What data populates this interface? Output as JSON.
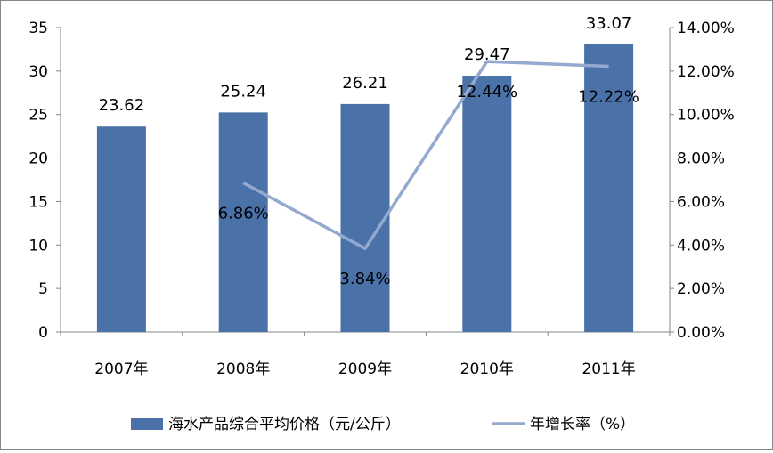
{
  "chart_data": {
    "type": "bar+line",
    "categories": [
      "2007年",
      "2008年",
      "2009年",
      "2010年",
      "2011年"
    ],
    "series": [
      {
        "name": "海水产品综合平均价格（元/公斤）",
        "type": "bar",
        "axis": "left",
        "values": [
          23.62,
          25.24,
          26.21,
          29.47,
          33.07
        ],
        "labels": [
          "23.62",
          "25.24",
          "26.21",
          "29.47",
          "33.07"
        ],
        "color": "#4a72a8"
      },
      {
        "name": "年增长率（%）",
        "type": "line",
        "axis": "right",
        "values": [
          null,
          6.86,
          3.84,
          12.44,
          12.22
        ],
        "labels": [
          "",
          "6.86%",
          "3.84%",
          "12.44%",
          "12.22%"
        ],
        "color": "#93a9cf"
      }
    ],
    "y_left": {
      "min": 0,
      "max": 35,
      "step": 5,
      "ticks": [
        "0",
        "5",
        "10",
        "15",
        "20",
        "25",
        "30",
        "35"
      ]
    },
    "y_right": {
      "min": 0,
      "max": 14,
      "step": 2,
      "ticks": [
        "0.00%",
        "2.00%",
        "4.00%",
        "6.00%",
        "8.00%",
        "10.00%",
        "12.00%",
        "14.00%"
      ]
    },
    "grid": false,
    "legend": "bottom"
  }
}
